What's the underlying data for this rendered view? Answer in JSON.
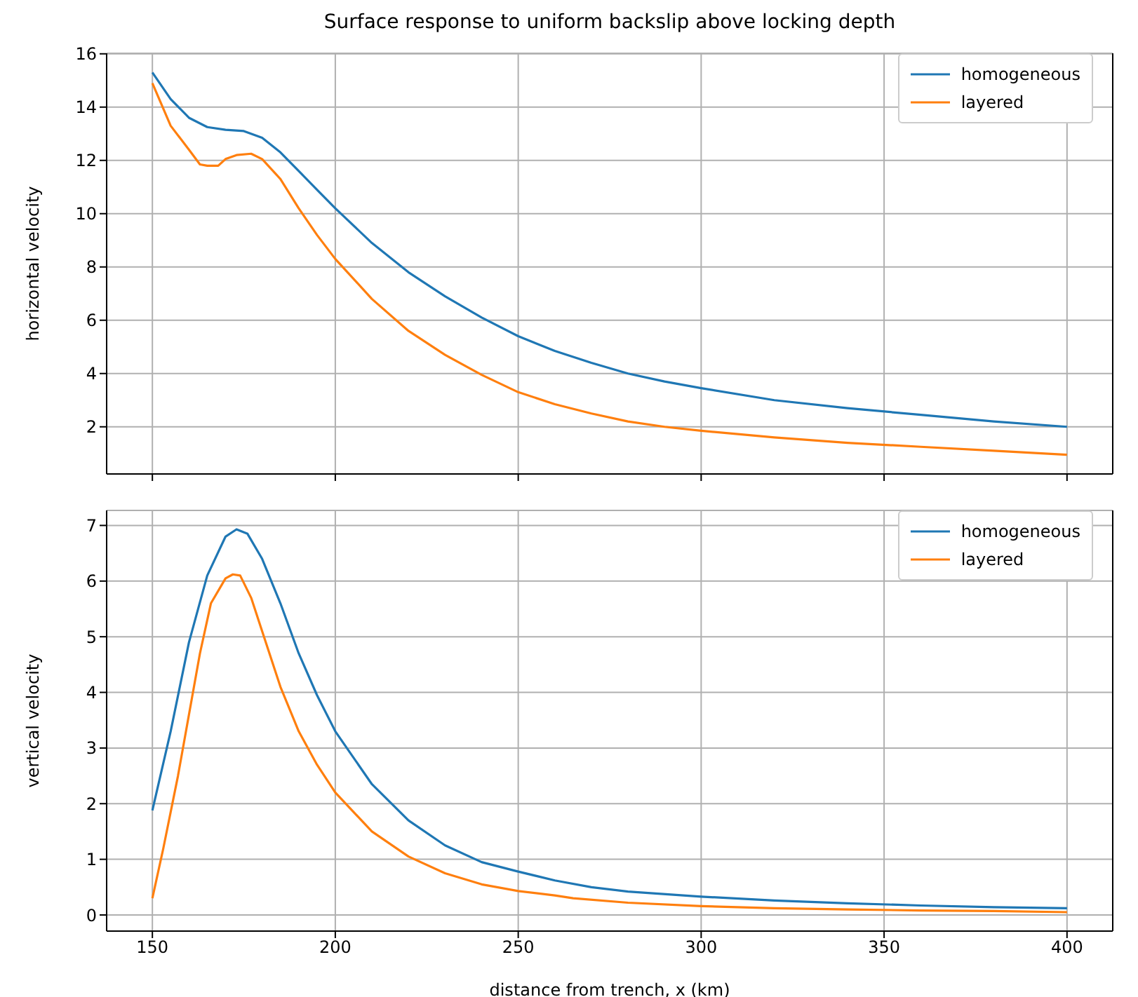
{
  "chart_data": [
    {
      "type": "line",
      "title": "Surface response to uniform backslip above locking depth",
      "ylabel": "horizontal velocity",
      "xlim": [
        137.5,
        412.5
      ],
      "xticks": [
        150,
        200,
        250,
        300,
        350,
        400
      ],
      "ylim": [
        0.23,
        16.02
      ],
      "yticks": [
        2,
        4,
        6,
        8,
        10,
        12,
        14,
        16
      ],
      "grid": true,
      "legend": "top right",
      "tick_labels": "y",
      "series": [
        {
          "name": "homogeneous",
          "color": "#1f77b4",
          "x": [
            150,
            155,
            160,
            165,
            170,
            175,
            180,
            185,
            190,
            195,
            200,
            210,
            220,
            230,
            240,
            250,
            260,
            270,
            280,
            290,
            300,
            320,
            340,
            360,
            380,
            400
          ],
          "values": [
            15.3,
            14.3,
            13.6,
            13.25,
            13.15,
            13.1,
            12.85,
            12.3,
            11.6,
            10.9,
            10.2,
            8.9,
            7.8,
            6.9,
            6.1,
            5.4,
            4.85,
            4.4,
            4.0,
            3.7,
            3.45,
            3.0,
            2.7,
            2.45,
            2.2,
            2.0
          ]
        },
        {
          "name": "layered",
          "color": "#ff7f0e",
          "x": [
            150,
            155,
            160,
            163,
            165,
            168,
            170,
            173,
            177,
            180,
            185,
            190,
            195,
            200,
            210,
            220,
            230,
            240,
            250,
            260,
            270,
            280,
            290,
            300,
            320,
            340,
            360,
            380,
            400
          ],
          "values": [
            14.9,
            13.3,
            12.4,
            11.85,
            11.8,
            11.8,
            12.05,
            12.2,
            12.25,
            12.05,
            11.3,
            10.2,
            9.2,
            8.3,
            6.8,
            5.6,
            4.7,
            3.95,
            3.3,
            2.85,
            2.5,
            2.2,
            2.0,
            1.85,
            1.6,
            1.4,
            1.25,
            1.1,
            0.95
          ]
        }
      ]
    },
    {
      "type": "line",
      "xlabel": "distance from trench, x (km)",
      "ylabel": "vertical velocity",
      "xlim": [
        137.5,
        412.5
      ],
      "xticks": [
        150,
        200,
        250,
        300,
        350,
        400
      ],
      "ylim": [
        -0.29,
        7.27
      ],
      "yticks": [
        0,
        1,
        2,
        3,
        4,
        5,
        6,
        7
      ],
      "grid": true,
      "legend": "top right",
      "series": [
        {
          "name": "homogeneous",
          "color": "#1f77b4",
          "x": [
            150,
            155,
            160,
            165,
            170,
            173,
            176,
            180,
            185,
            190,
            195,
            200,
            210,
            220,
            230,
            240,
            250,
            260,
            270,
            280,
            300,
            320,
            340,
            360,
            380,
            400
          ],
          "values": [
            1.88,
            3.3,
            4.9,
            6.1,
            6.8,
            6.93,
            6.85,
            6.4,
            5.6,
            4.7,
            3.95,
            3.3,
            2.35,
            1.7,
            1.25,
            0.95,
            0.78,
            0.62,
            0.5,
            0.42,
            0.33,
            0.26,
            0.21,
            0.17,
            0.14,
            0.12
          ]
        },
        {
          "name": "layered",
          "color": "#ff7f0e",
          "x": [
            150,
            153,
            157,
            160,
            163,
            166,
            170,
            172,
            174,
            177,
            180,
            185,
            190,
            195,
            200,
            210,
            220,
            230,
            240,
            250,
            260,
            265,
            280,
            300,
            320,
            340,
            360,
            380,
            400
          ],
          "values": [
            0.3,
            1.2,
            2.5,
            3.6,
            4.7,
            5.6,
            6.05,
            6.12,
            6.1,
            5.7,
            5.1,
            4.1,
            3.3,
            2.7,
            2.2,
            1.5,
            1.05,
            0.75,
            0.55,
            0.43,
            0.35,
            0.3,
            0.22,
            0.16,
            0.12,
            0.1,
            0.08,
            0.07,
            0.05
          ]
        }
      ]
    }
  ]
}
